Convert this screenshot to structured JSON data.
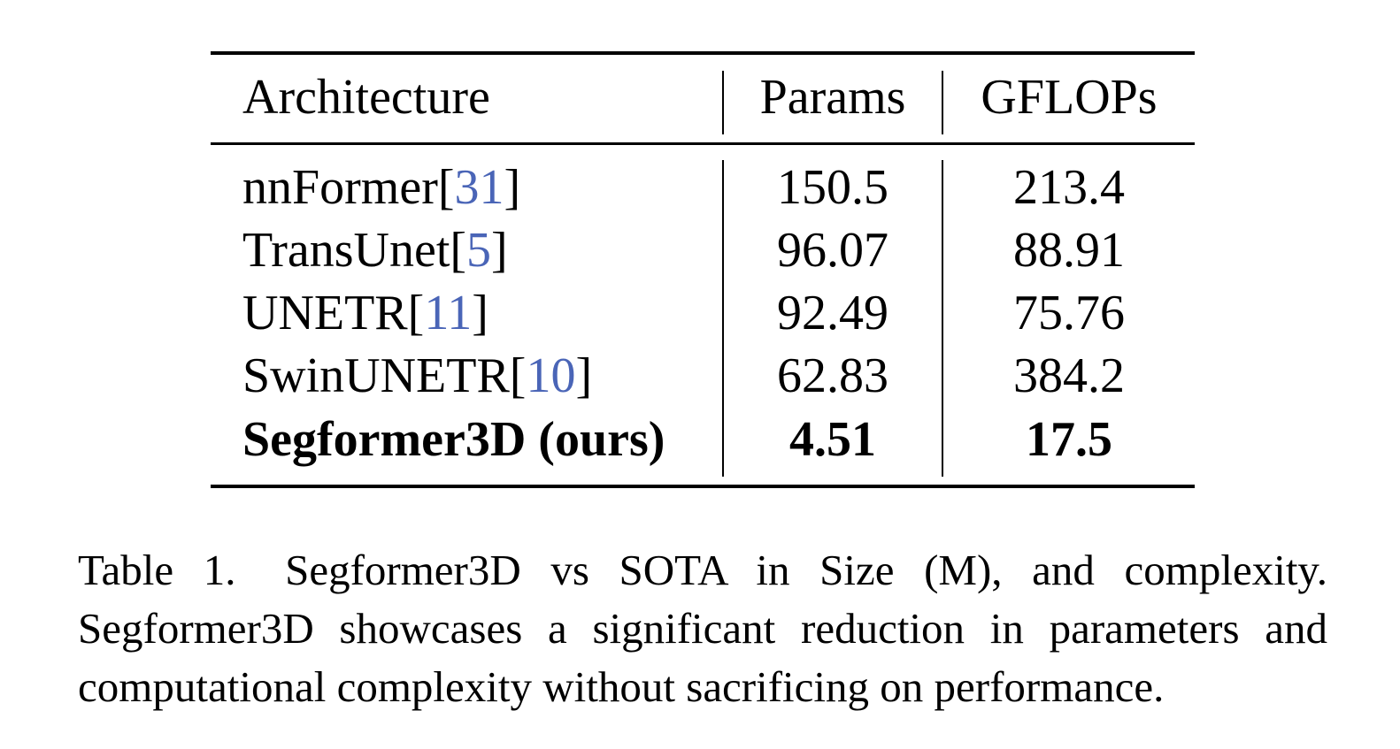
{
  "table": {
    "headers": {
      "architecture": "Architecture",
      "params": "Params",
      "gflops": "GFLOPs"
    },
    "rows": [
      {
        "name": "nnFormer",
        "ref": "31",
        "params": "150.5",
        "gflops": "213.4",
        "bold": false
      },
      {
        "name": "TransUnet",
        "ref": "5",
        "params": "96.07",
        "gflops": "88.91",
        "bold": false
      },
      {
        "name": "UNETR",
        "ref": "11",
        "params": "92.49",
        "gflops": "75.76",
        "bold": false
      },
      {
        "name": "SwinUNETR",
        "ref": "10",
        "params": "62.83",
        "gflops": "384.2",
        "bold": false
      },
      {
        "name": "Segformer3D (ours)",
        "ref": "",
        "params": "4.51",
        "gflops": "17.5",
        "bold": true
      }
    ],
    "link_color": "#4a65b7"
  },
  "caption": {
    "label": "Table 1.",
    "text": "Segformer3D vs SOTA in Size (M), and complexity. Segformer3D showcases a significant reduction in parameters and computational complexity without sacrificing on performance.",
    "lines": [
      "Segformer3D vs SOTA in Size (M), and complexity.",
      "Segformer3D showcases a significant reduction in parameters and",
      "computational complexity without sacrificing on performance."
    ]
  }
}
